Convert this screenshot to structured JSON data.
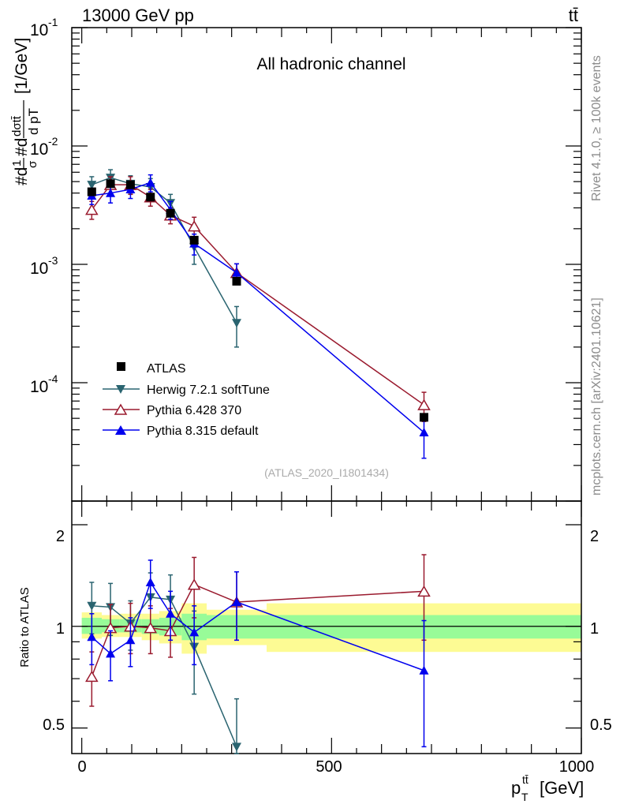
{
  "header": {
    "energy_label": "13000 GeV pp",
    "process_label": "tt̄"
  },
  "side_text": {
    "rivet": "Rivet 4.1.0, ≥ 100k events",
    "mcplots": "mcplots.cern.ch [arXiv:2401.10621]"
  },
  "chart_data": [
    {
      "type": "line",
      "panel": "main",
      "title": "All hadronic channel",
      "analysis_id": "(ATLAS_2020_I1801434)",
      "ylabel": "#d1σ#ddσtt̄ / d pT tt̄ [1/GeV]",
      "ylabel_prefix": "#d",
      "ylabel_frac_num": "1",
      "ylabel_frac_den": "σ",
      "ylabel_mid": "#d",
      "ylabel_frac2_num": "dσtt̄",
      "ylabel_frac2_den": "d pT",
      "ylabel_unit": "[1/GeV]",
      "yscale": "log",
      "ylim": [
        1e-05,
        0.1
      ],
      "xlim": [
        -20,
        1000
      ],
      "ytick_labels": [
        "10",
        "10",
        "10",
        "10"
      ],
      "ytick_exponents": [
        "-1",
        "-2",
        "-3",
        "-4"
      ],
      "legend_position": "lower-left",
      "reference": {
        "name": "ATLAS",
        "marker": "square",
        "color": "#000000",
        "x": [
          20,
          57.5,
          97.5,
          137.5,
          177.5,
          225,
          310,
          685
        ],
        "y": [
          0.0041,
          0.0048,
          0.0047,
          0.0037,
          0.0027,
          0.0016,
          0.00072,
          5.1e-05
        ]
      },
      "series": [
        {
          "name": "Herwig 7.2.1 softTune",
          "marker": "triangle-down-filled",
          "color": "#2a6470",
          "x": [
            20,
            57.5,
            97.5,
            137.5,
            177.5,
            225,
            310
          ],
          "y": [
            0.0047,
            0.0054,
            0.0048,
            0.0045,
            0.0033,
            0.0014,
            0.00032
          ],
          "err": [
            0.0008,
            0.0009,
            0.0008,
            0.0008,
            0.0006,
            0.0004,
            0.00012
          ]
        },
        {
          "name": "Pythia 6.428 370",
          "marker": "triangle-up-open",
          "color": "#9a1a2e",
          "x": [
            20,
            57.5,
            97.5,
            137.5,
            177.5,
            225,
            310,
            685
          ],
          "y": [
            0.0029,
            0.0047,
            0.0047,
            0.0037,
            0.0026,
            0.0021,
            0.00085,
            6.5e-05
          ],
          "err": [
            0.0005,
            0.0008,
            0.0008,
            0.0006,
            0.0004,
            0.0004,
            0.00016,
            1.8e-05
          ]
        },
        {
          "name": "Pythia 8.315 default",
          "marker": "triangle-up-filled",
          "color": "#0000ee",
          "x": [
            20,
            57.5,
            97.5,
            137.5,
            177.5,
            225,
            310,
            685
          ],
          "y": [
            0.0038,
            0.004,
            0.0043,
            0.0049,
            0.0029,
            0.0015,
            0.00085,
            3.8e-05
          ],
          "err": [
            0.0006,
            0.0007,
            0.0007,
            0.0008,
            0.0005,
            0.0003,
            0.00016,
            1.5e-05
          ]
        }
      ]
    },
    {
      "type": "line",
      "panel": "ratio",
      "ylabel": "Ratio to ATLAS",
      "xlabel": "pT tt̄ [GeV]",
      "xlabel_main": "p",
      "xlabel_sub": "T",
      "xlabel_sup": "tt̄",
      "xlabel_unit": "[GeV]",
      "yscale": "log",
      "ylim": [
        0.42,
        2.35
      ],
      "xlim": [
        -20,
        1000
      ],
      "xtick_labels": [
        "0",
        "500",
        "1000"
      ],
      "ytick_labels": [
        "0.5",
        "1",
        "2"
      ],
      "bands": {
        "bins": [
          [
            0,
            40
          ],
          [
            40,
            75
          ],
          [
            75,
            120
          ],
          [
            120,
            155
          ],
          [
            155,
            200
          ],
          [
            200,
            250
          ],
          [
            250,
            370
          ],
          [
            370,
            1000
          ]
        ],
        "green": [
          [
            0.95,
            1.06
          ],
          [
            0.96,
            1.05
          ],
          [
            0.96,
            1.05
          ],
          [
            0.95,
            1.05
          ],
          [
            0.94,
            1.06
          ],
          [
            0.91,
            1.09
          ],
          [
            0.92,
            1.08
          ],
          [
            0.92,
            1.08
          ]
        ],
        "yellow": [
          [
            0.92,
            1.1
          ],
          [
            0.93,
            1.08
          ],
          [
            0.93,
            1.09
          ],
          [
            0.91,
            1.09
          ],
          [
            0.89,
            1.11
          ],
          [
            0.83,
            1.17
          ],
          [
            0.88,
            1.12
          ],
          [
            0.84,
            1.17
          ]
        ]
      },
      "series": [
        {
          "name": "Herwig 7.2.1 softTune",
          "x": [
            20,
            57.5,
            97.5,
            137.5,
            177.5,
            225,
            310
          ],
          "y": [
            1.15,
            1.14,
            1.02,
            1.22,
            1.2,
            0.87,
            0.44
          ],
          "err": [
            0.2,
            0.2,
            0.17,
            0.22,
            0.22,
            0.24,
            0.17
          ]
        },
        {
          "name": "Pythia 6.428 370",
          "x": [
            20,
            57.5,
            97.5,
            137.5,
            177.5,
            225,
            310,
            685
          ],
          "y": [
            0.71,
            0.99,
            1.0,
            0.99,
            0.97,
            1.33,
            1.18,
            1.27
          ],
          "err": [
            0.13,
            0.17,
            0.17,
            0.16,
            0.16,
            0.27,
            0.27,
            0.36
          ]
        },
        {
          "name": "Pythia 8.315 default",
          "x": [
            20,
            57.5,
            97.5,
            137.5,
            177.5,
            225,
            310,
            685
          ],
          "y": [
            0.93,
            0.83,
            0.91,
            1.35,
            1.09,
            0.96,
            1.18,
            0.74
          ],
          "err": [
            0.16,
            0.14,
            0.15,
            0.22,
            0.18,
            0.19,
            0.27,
            0.3
          ]
        }
      ]
    }
  ]
}
